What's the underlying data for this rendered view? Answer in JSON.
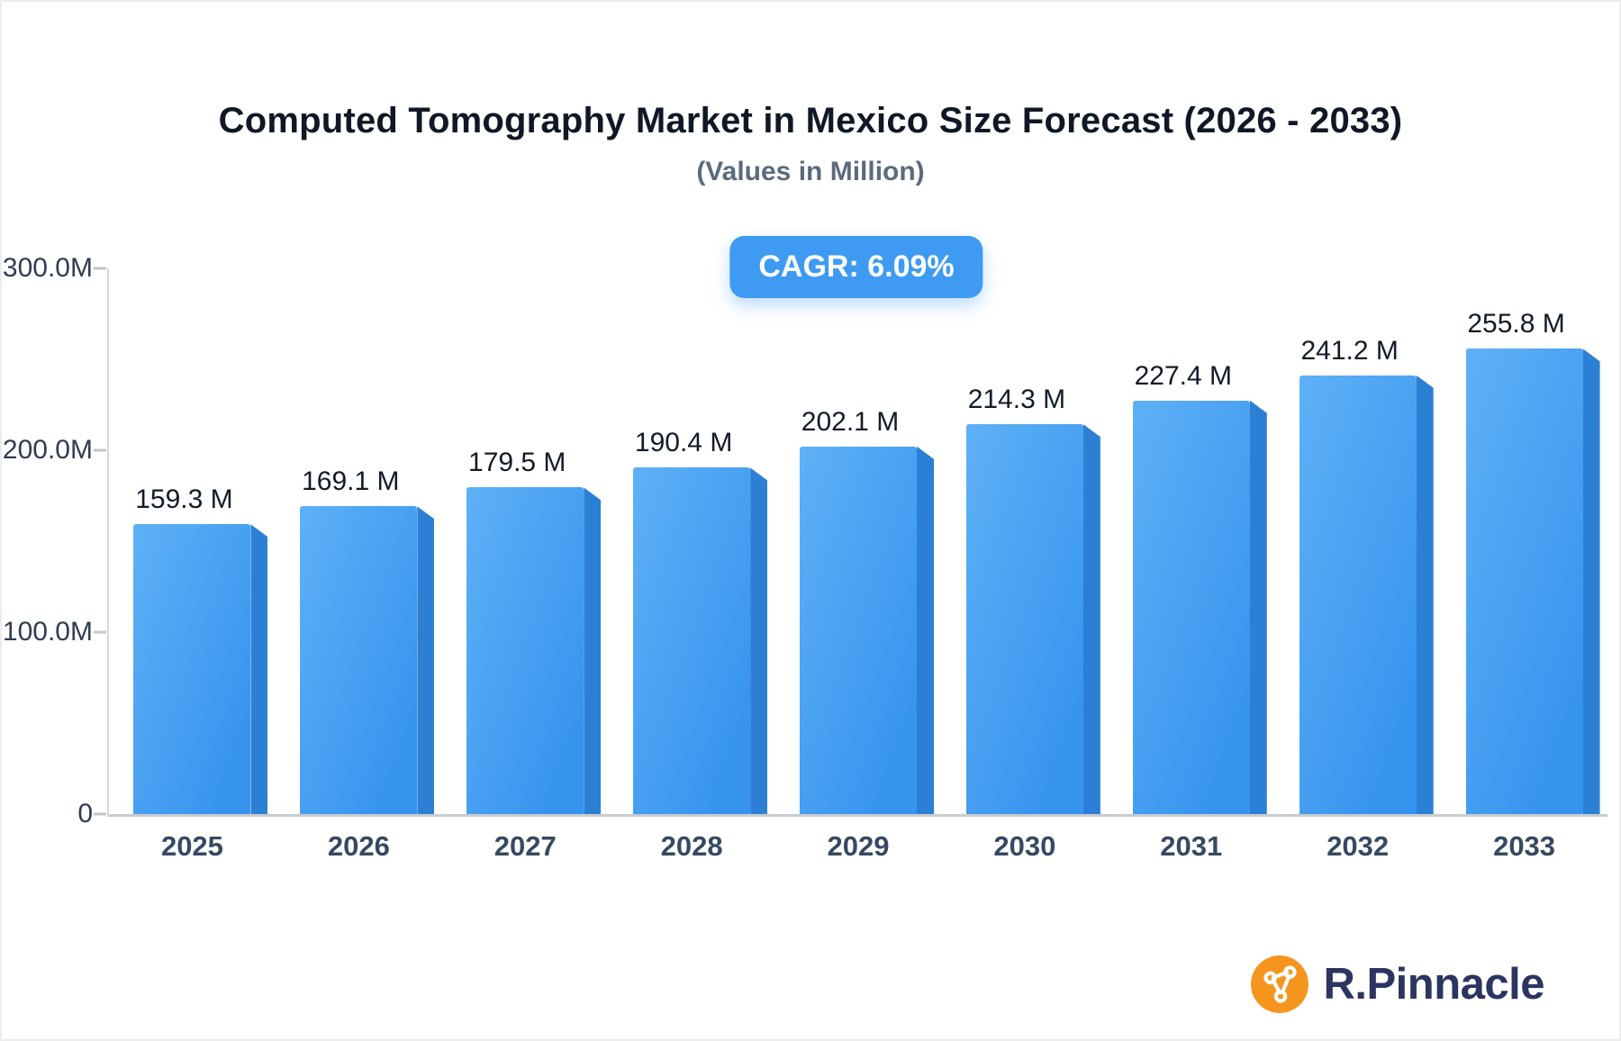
{
  "theme": {
    "accent": "#3e9bf1",
    "title_color": "#101826",
    "subtitle_color": "#5b6b7d",
    "axis_label_color": "#2f3d52",
    "year_label_color": "#364962",
    "value_label_color": "#121b28",
    "axis_line_color": "#d5d8db",
    "logo_orange": "#f6951d",
    "logo_text_color": "#2b3560"
  },
  "chart_data": {
    "type": "bar",
    "title": "Computed Tomography Market in Mexico Size Forecast (2026 - 2033)",
    "subtitle": "(Values in Million)",
    "annotation": "CAGR: 6.09%",
    "categories": [
      "2025",
      "2026",
      "2027",
      "2028",
      "2029",
      "2030",
      "2031",
      "2032",
      "2033"
    ],
    "values": [
      159.3,
      169.1,
      179.5,
      190.4,
      202.1,
      214.3,
      227.4,
      241.2,
      255.8
    ],
    "value_labels": [
      "159.3 M",
      "169.1 M",
      "179.5 M",
      "190.4 M",
      "202.1 M",
      "214.3 M",
      "227.4 M",
      "241.2 M",
      "255.8 M"
    ],
    "xlabel": "",
    "ylabel": "",
    "ylim": [
      0,
      300
    ],
    "yticks": [
      {
        "label": "300.0M",
        "value": 300
      },
      {
        "label": "200.0M",
        "value": 200
      },
      {
        "label": "100.0M",
        "value": 100
      },
      {
        "label": "0",
        "value": 0
      }
    ],
    "grid": false,
    "legend": false,
    "colors": {
      "bar_front_light": "#5fb1f6",
      "bar_front_dark": "#3794ee",
      "bar_side": "#2b80d6"
    }
  },
  "branding": {
    "name": "R.Pinnacle"
  }
}
